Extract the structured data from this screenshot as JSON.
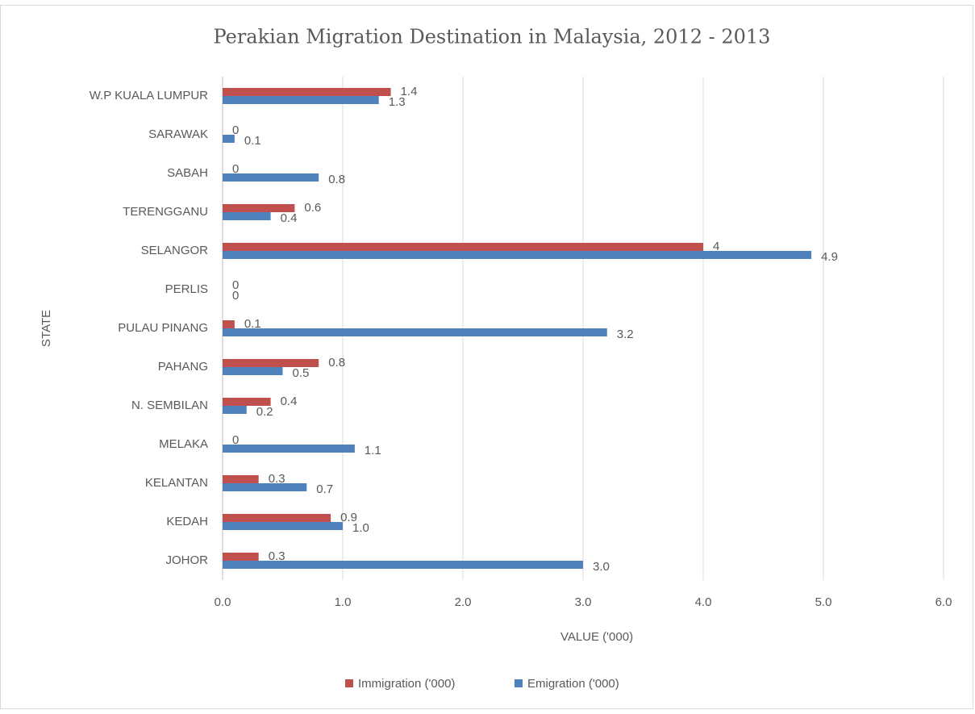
{
  "chart_data": {
    "type": "barh",
    "title": "Perakian Migration Destination in Malaysia, 2012 - 2013",
    "xlabel": "VALUE ('000)",
    "ylabel": "STATE",
    "categories": [
      "JOHOR",
      "KEDAH",
      "KELANTAN",
      "MELAKA",
      "N. SEMBILAN",
      "PAHANG",
      "PULAU PINANG",
      "PERLIS",
      "SELANGOR",
      "TERENGGANU",
      "SABAH",
      "SARAWAK",
      "W.P KUALA LUMPUR"
    ],
    "series": [
      {
        "name": "Immigration ('000)",
        "color": "#c0504d",
        "values": [
          0.3,
          0.9,
          0.3,
          0,
          0.4,
          0.8,
          0.1,
          0,
          4,
          0.6,
          0,
          0,
          1.4
        ]
      },
      {
        "name": "Emigration ('000)",
        "color": "#4f81bd",
        "values": [
          3,
          1,
          0.7,
          1.1,
          0.2,
          0.5,
          3.2,
          0,
          4.9,
          0.4,
          0.8,
          0.1,
          1.3
        ],
        "value_labels": [
          "3.0",
          "1.0",
          "0.7",
          "1.1",
          "0.2",
          "0.5",
          "3.2",
          "0",
          "4.9",
          "0.4",
          "0.8",
          "0.1",
          "1.3"
        ]
      }
    ],
    "xlim": [
      0,
      6
    ],
    "xticks": [
      {
        "value": 0,
        "label": "0.0"
      },
      {
        "value": 1,
        "label": "1.0"
      },
      {
        "value": 2,
        "label": "2.0"
      },
      {
        "value": 3,
        "label": "3.0"
      },
      {
        "value": 4,
        "label": "4.0"
      },
      {
        "value": 5,
        "label": "5.0"
      },
      {
        "value": 6,
        "label": "6.0"
      }
    ],
    "grid": true,
    "legend": "bottom"
  }
}
